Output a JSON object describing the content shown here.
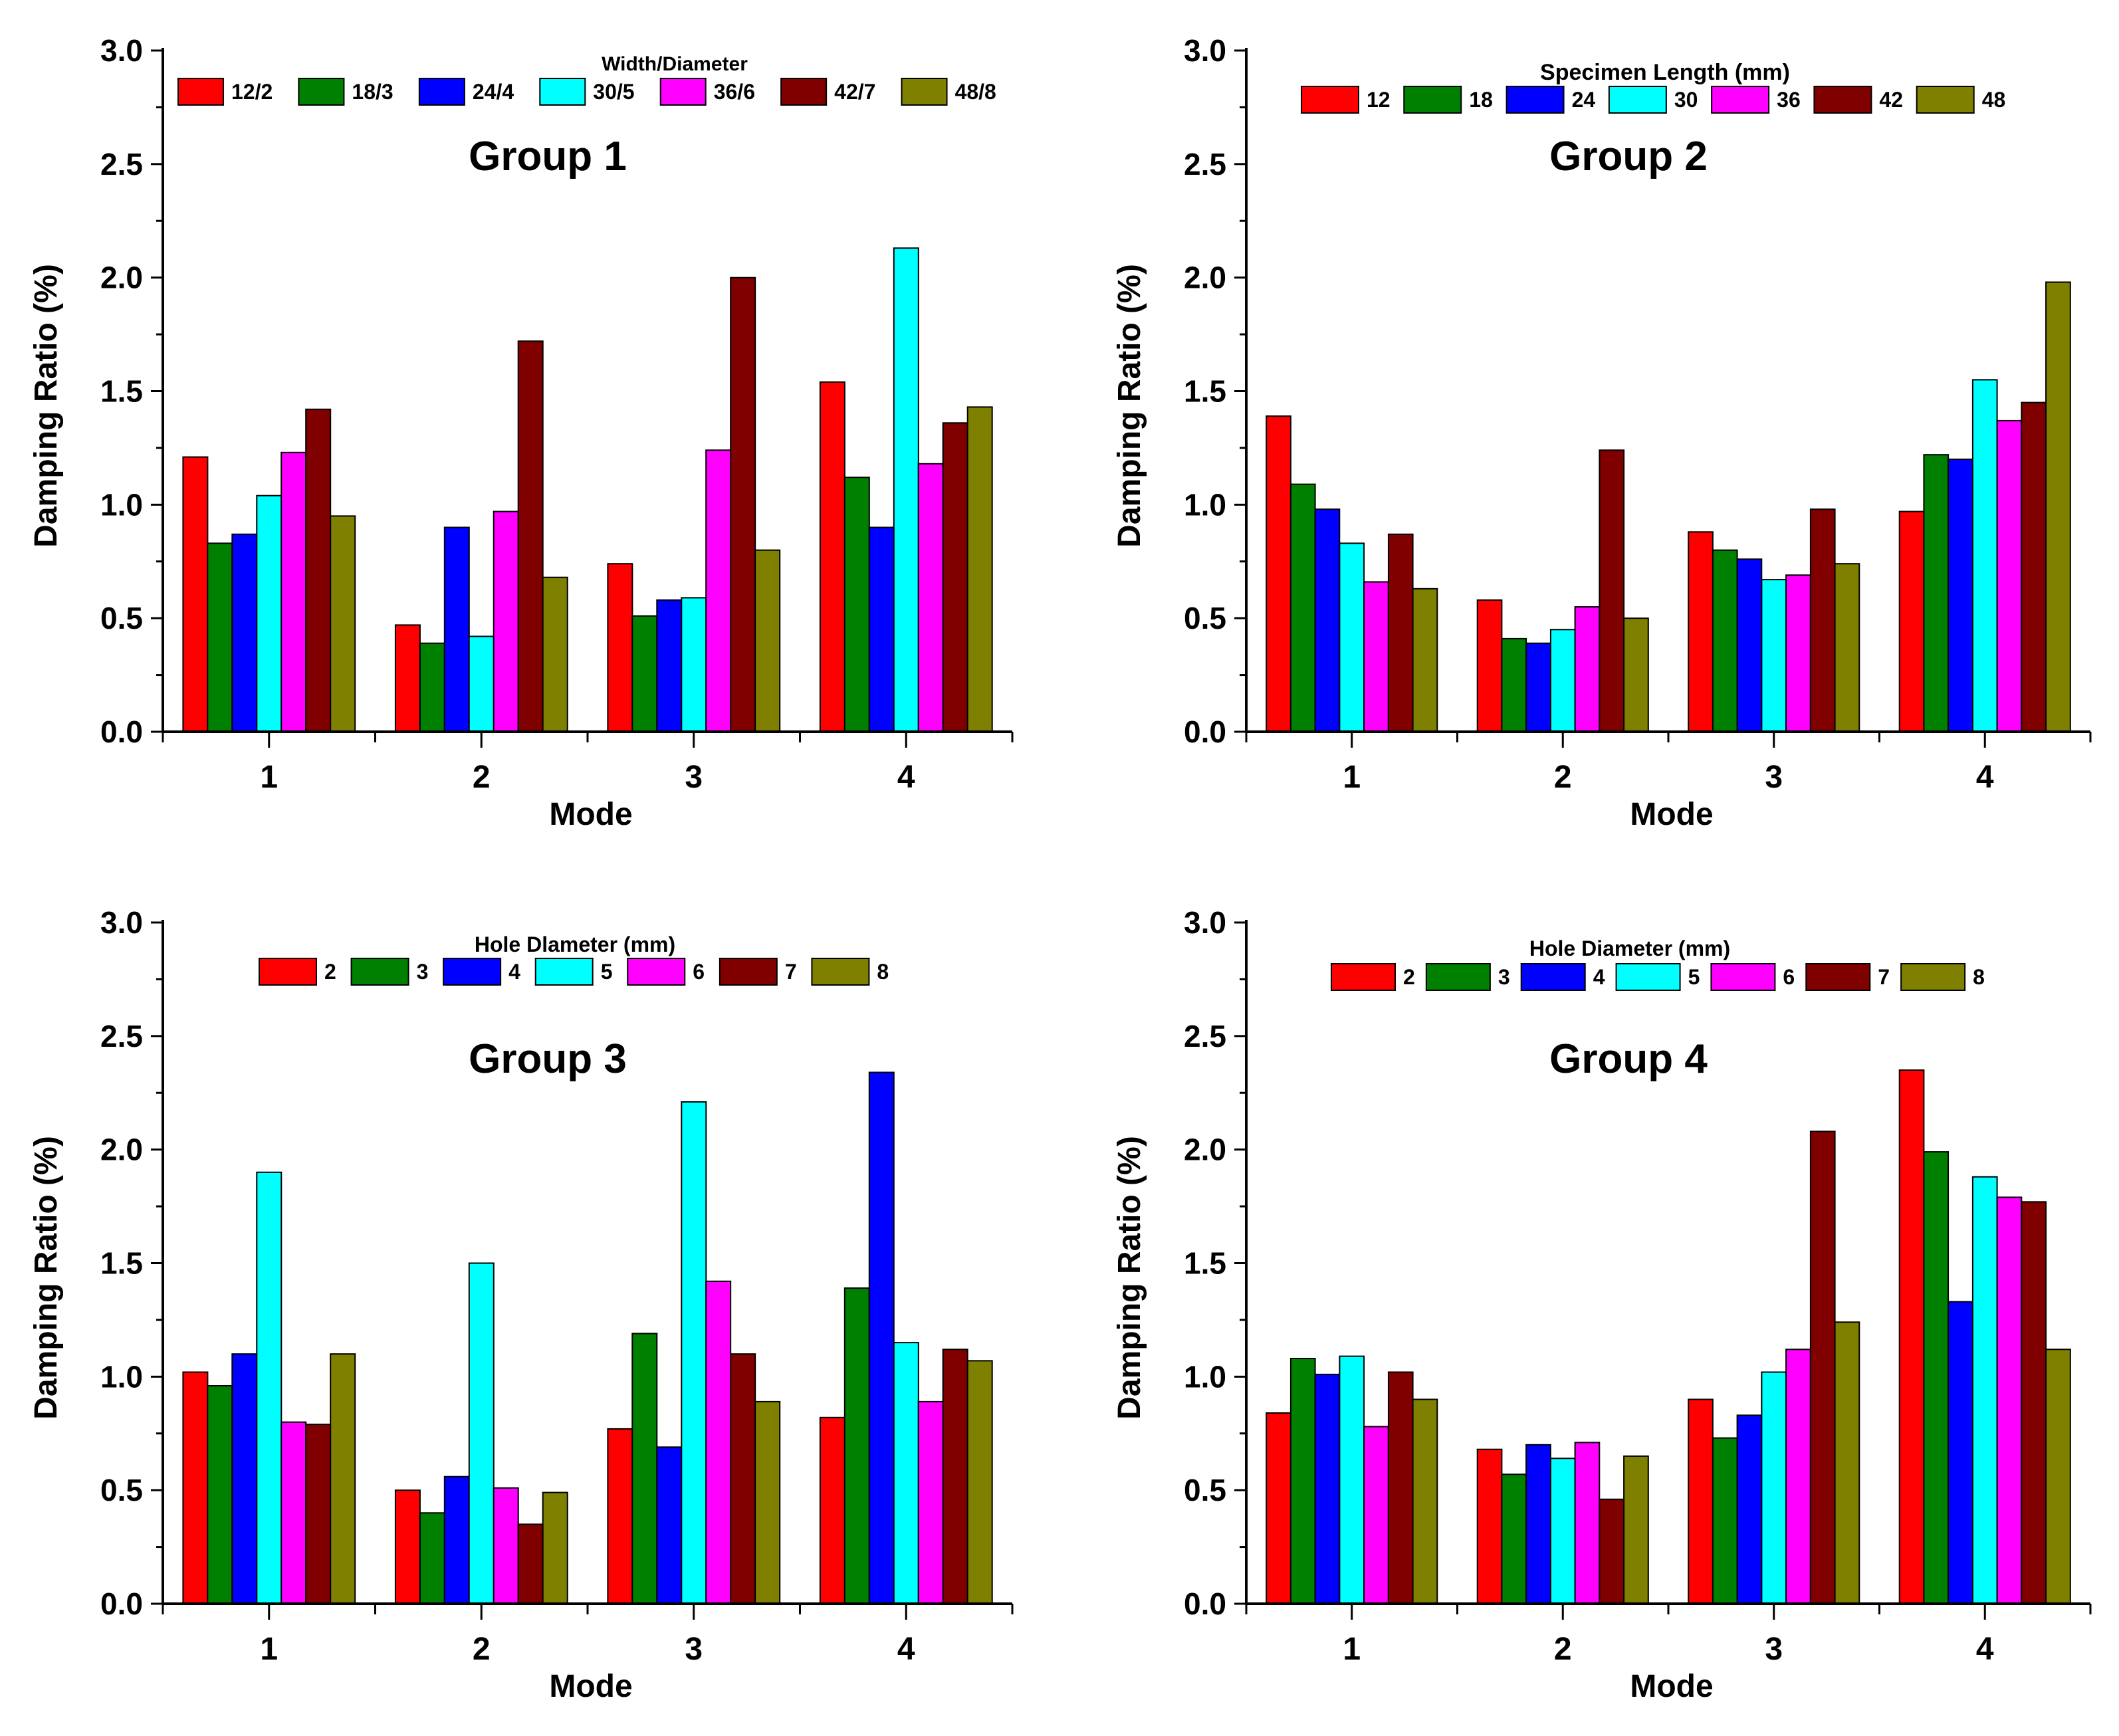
{
  "chart_data": [
    {
      "type": "bar",
      "title": "Group 1",
      "xlabel": "Mode",
      "ylabel": "Damping Ratio (%)",
      "ylim": [
        0,
        3.0
      ],
      "yticks": [
        "0.0",
        "0.5",
        "1.0",
        "1.5",
        "2.0",
        "2.5",
        "3.0"
      ],
      "categories": [
        "1",
        "2",
        "3",
        "4"
      ],
      "legend_title": "Width/Diameter",
      "legend_position": "top",
      "series": [
        {
          "name": "12/2",
          "color": "#ff0000",
          "values": [
            1.21,
            0.47,
            0.74,
            1.54
          ]
        },
        {
          "name": "18/3",
          "color": "#008000",
          "values": [
            0.83,
            0.39,
            0.51,
            1.12
          ]
        },
        {
          "name": "24/4",
          "color": "#0000ff",
          "values": [
            0.87,
            0.9,
            0.58,
            0.9
          ]
        },
        {
          "name": "30/5",
          "color": "#00ffff",
          "values": [
            1.04,
            0.42,
            0.59,
            2.13
          ]
        },
        {
          "name": "36/6",
          "color": "#ff00ff",
          "values": [
            1.23,
            0.97,
            1.24,
            1.18
          ]
        },
        {
          "name": "42/7",
          "color": "#800000",
          "values": [
            1.42,
            1.72,
            2.0,
            1.36
          ]
        },
        {
          "name": "48/8",
          "color": "#808000",
          "values": [
            0.95,
            0.68,
            0.8,
            1.43
          ]
        }
      ]
    },
    {
      "type": "bar",
      "title": "Group 2",
      "xlabel": "Mode",
      "ylabel": "Damping Ratio (%)",
      "ylim": [
        0,
        3.0
      ],
      "yticks": [
        "0.0",
        "0.5",
        "1.0",
        "1.5",
        "2.0",
        "2.5",
        "3.0"
      ],
      "categories": [
        "1",
        "2",
        "3",
        "4"
      ],
      "legend_title": "Specimen Length (mm)",
      "legend_position": "top",
      "series": [
        {
          "name": "12",
          "color": "#ff0000",
          "values": [
            1.39,
            0.58,
            0.88,
            0.97
          ]
        },
        {
          "name": "18",
          "color": "#008000",
          "values": [
            1.09,
            0.41,
            0.8,
            1.22
          ]
        },
        {
          "name": "24",
          "color": "#0000ff",
          "values": [
            0.98,
            0.39,
            0.76,
            1.2
          ]
        },
        {
          "name": "30",
          "color": "#00ffff",
          "values": [
            0.83,
            0.45,
            0.67,
            1.55
          ]
        },
        {
          "name": "36",
          "color": "#ff00ff",
          "values": [
            0.66,
            0.55,
            0.69,
            1.37
          ]
        },
        {
          "name": "42",
          "color": "#800000",
          "values": [
            0.87,
            1.24,
            0.98,
            1.45
          ]
        },
        {
          "name": "48",
          "color": "#808000",
          "values": [
            0.63,
            0.5,
            0.74,
            1.98
          ]
        }
      ]
    },
    {
      "type": "bar",
      "title": "Group 3",
      "xlabel": "Mode",
      "ylabel": "Damping Ratio (%)",
      "ylim": [
        0,
        3.0
      ],
      "yticks": [
        "0.0",
        "0.5",
        "1.0",
        "1.5",
        "2.0",
        "2.5",
        "3.0"
      ],
      "categories": [
        "1",
        "2",
        "3",
        "4"
      ],
      "legend_title": "Hole Dlameter (mm)",
      "legend_position": "top",
      "series": [
        {
          "name": "2",
          "color": "#ff0000",
          "values": [
            1.02,
            0.5,
            0.77,
            0.82
          ]
        },
        {
          "name": "3",
          "color": "#008000",
          "values": [
            0.96,
            0.4,
            1.19,
            1.39
          ]
        },
        {
          "name": "4",
          "color": "#0000ff",
          "values": [
            1.1,
            0.56,
            0.69,
            2.34
          ]
        },
        {
          "name": "5",
          "color": "#00ffff",
          "values": [
            1.9,
            1.5,
            2.21,
            1.15
          ]
        },
        {
          "name": "6",
          "color": "#ff00ff",
          "values": [
            0.8,
            0.51,
            1.42,
            0.89
          ]
        },
        {
          "name": "7",
          "color": "#800000",
          "values": [
            0.79,
            0.35,
            1.1,
            1.12
          ]
        },
        {
          "name": "8",
          "color": "#808000",
          "values": [
            1.1,
            0.49,
            0.89,
            1.07
          ]
        }
      ]
    },
    {
      "type": "bar",
      "title": "Group 4",
      "xlabel": "Mode",
      "ylabel": "Damping Ratio (%)",
      "ylim": [
        0,
        3.0
      ],
      "yticks": [
        "0.0",
        "0.5",
        "1.0",
        "1.5",
        "2.0",
        "2.5",
        "3.0"
      ],
      "categories": [
        "1",
        "2",
        "3",
        "4"
      ],
      "legend_title": "Hole Diameter (mm)",
      "legend_position": "top",
      "series": [
        {
          "name": "2",
          "color": "#ff0000",
          "values": [
            0.84,
            0.68,
            0.9,
            2.35
          ]
        },
        {
          "name": "3",
          "color": "#008000",
          "values": [
            1.08,
            0.57,
            0.73,
            1.99
          ]
        },
        {
          "name": "4",
          "color": "#0000ff",
          "values": [
            1.01,
            0.7,
            0.83,
            1.33
          ]
        },
        {
          "name": "5",
          "color": "#00ffff",
          "values": [
            1.09,
            0.64,
            1.02,
            1.88
          ]
        },
        {
          "name": "6",
          "color": "#ff00ff",
          "values": [
            0.78,
            0.71,
            1.12,
            1.79
          ]
        },
        {
          "name": "7",
          "color": "#800000",
          "values": [
            1.02,
            0.46,
            2.08,
            1.77
          ]
        },
        {
          "name": "8",
          "color": "#808000",
          "values": [
            0.9,
            0.65,
            1.24,
            1.12
          ]
        }
      ]
    }
  ]
}
